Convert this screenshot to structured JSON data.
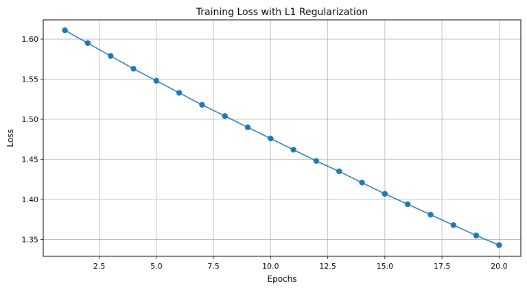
{
  "chart_data": {
    "type": "line",
    "title": "Training Loss with L1 Regularization",
    "xlabel": "Epochs",
    "ylabel": "Loss",
    "xlim": [
      0.05,
      20.95
    ],
    "ylim": [
      1.329,
      1.624
    ],
    "grid": true,
    "x_ticks": [
      "2.5",
      "5.0",
      "7.5",
      "10.0",
      "12.5",
      "15.0",
      "17.5",
      "20.0"
    ],
    "x_tick_values": [
      2.5,
      5.0,
      7.5,
      10.0,
      12.5,
      15.0,
      17.5,
      20.0
    ],
    "y_ticks": [
      "1.35",
      "1.40",
      "1.45",
      "1.50",
      "1.55",
      "1.60"
    ],
    "y_tick_values": [
      1.35,
      1.4,
      1.45,
      1.5,
      1.55,
      1.6
    ],
    "series": [
      {
        "name": "Training Loss",
        "color": "#1f77b4",
        "marker": "circle",
        "x": [
          1,
          2,
          3,
          4,
          5,
          6,
          7,
          8,
          9,
          10,
          11,
          12,
          13,
          14,
          15,
          16,
          17,
          18,
          19,
          20
        ],
        "values": [
          1.611,
          1.595,
          1.579,
          1.563,
          1.548,
          1.533,
          1.518,
          1.504,
          1.49,
          1.476,
          1.462,
          1.448,
          1.435,
          1.421,
          1.407,
          1.394,
          1.381,
          1.368,
          1.355,
          1.343
        ]
      }
    ]
  }
}
